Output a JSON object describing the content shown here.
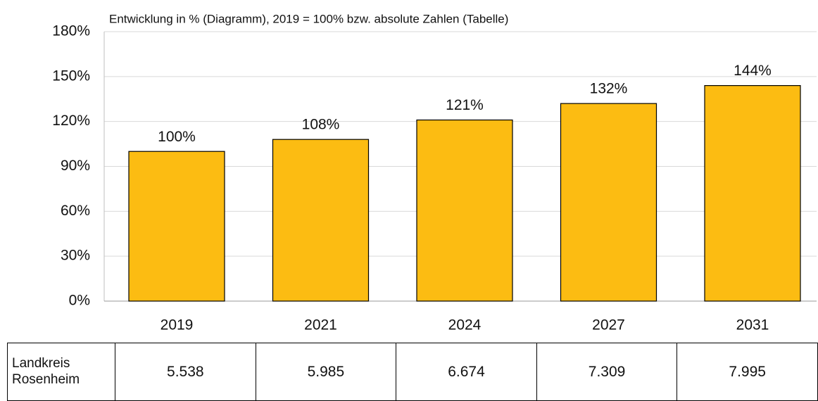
{
  "chart_data": {
    "type": "bar",
    "subtitle": "Entwicklung in % (Diagramm), 2019 = 100% bzw. absolute Zahlen (Tabelle)",
    "categories": [
      "2019",
      "2021",
      "2024",
      "2027",
      "2031"
    ],
    "values": [
      100,
      108,
      121,
      132,
      144
    ],
    "value_labels": [
      "100%",
      "108%",
      "121%",
      "132%",
      "144%"
    ],
    "color": "#fcbc12",
    "ylim": [
      0,
      180
    ],
    "yticks": [
      {
        "value": 0,
        "label": "0%"
      },
      {
        "value": 30,
        "label": "30%"
      },
      {
        "value": 60,
        "label": "60%"
      },
      {
        "value": 90,
        "label": "90%"
      },
      {
        "value": 120,
        "label": "120%"
      },
      {
        "value": 150,
        "label": "150%"
      },
      {
        "value": 180,
        "label": "180%"
      }
    ],
    "grid": true
  },
  "table": {
    "row_label": "Landkreis Rosenheim",
    "cells": [
      "5.538",
      "5.985",
      "6.674",
      "7.309",
      "7.995"
    ]
  }
}
